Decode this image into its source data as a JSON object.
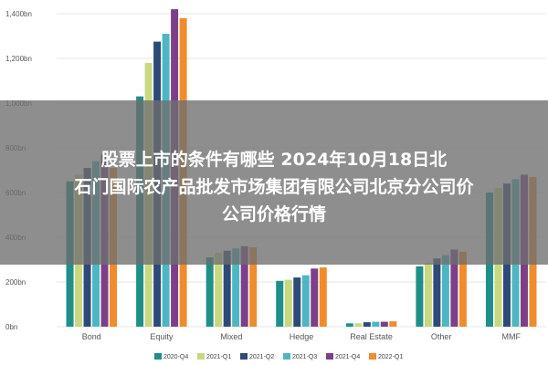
{
  "chart_data": {
    "type": "bar",
    "categories": [
      "Bond",
      "Equity",
      "Mixed",
      "Hedge",
      "Real Estate",
      "Other",
      "MMF"
    ],
    "series": [
      {
        "name": "2020-Q4",
        "color": "#1f8f8a",
        "values": [
          650,
          1030,
          310,
          205,
          15,
          270,
          600
        ]
      },
      {
        "name": "2021-Q1",
        "color": "#c8d880",
        "values": [
          680,
          1180,
          330,
          210,
          15,
          285,
          620
        ]
      },
      {
        "name": "2021-Q2",
        "color": "#2d4a78",
        "values": [
          710,
          1275,
          340,
          220,
          20,
          305,
          640
        ]
      },
      {
        "name": "2021-Q3",
        "color": "#4eb6c2",
        "values": [
          740,
          1310,
          350,
          230,
          22,
          320,
          660
        ]
      },
      {
        "name": "2021-Q4",
        "color": "#7c3f88",
        "values": [
          770,
          1420,
          360,
          260,
          22,
          345,
          680
        ]
      },
      {
        "name": "2022-Q1",
        "color": "#f08c2c",
        "values": [
          710,
          1380,
          355,
          265,
          24,
          335,
          670
        ]
      }
    ],
    "yticks": [
      "0bn",
      "200bn",
      "400bn",
      "600bn",
      "800bn",
      "1,000bn",
      "1,200bn",
      "1,400bn"
    ],
    "ylim": [
      0,
      1400
    ],
    "grid": true,
    "legend": "bottom"
  },
  "overlay": {
    "line1": "股票上市的条件有哪些 2024年10月18日北",
    "line2": "石门国际农产品批发市场集团有限公司北京分公司价",
    "line3": "公司价格行情"
  }
}
